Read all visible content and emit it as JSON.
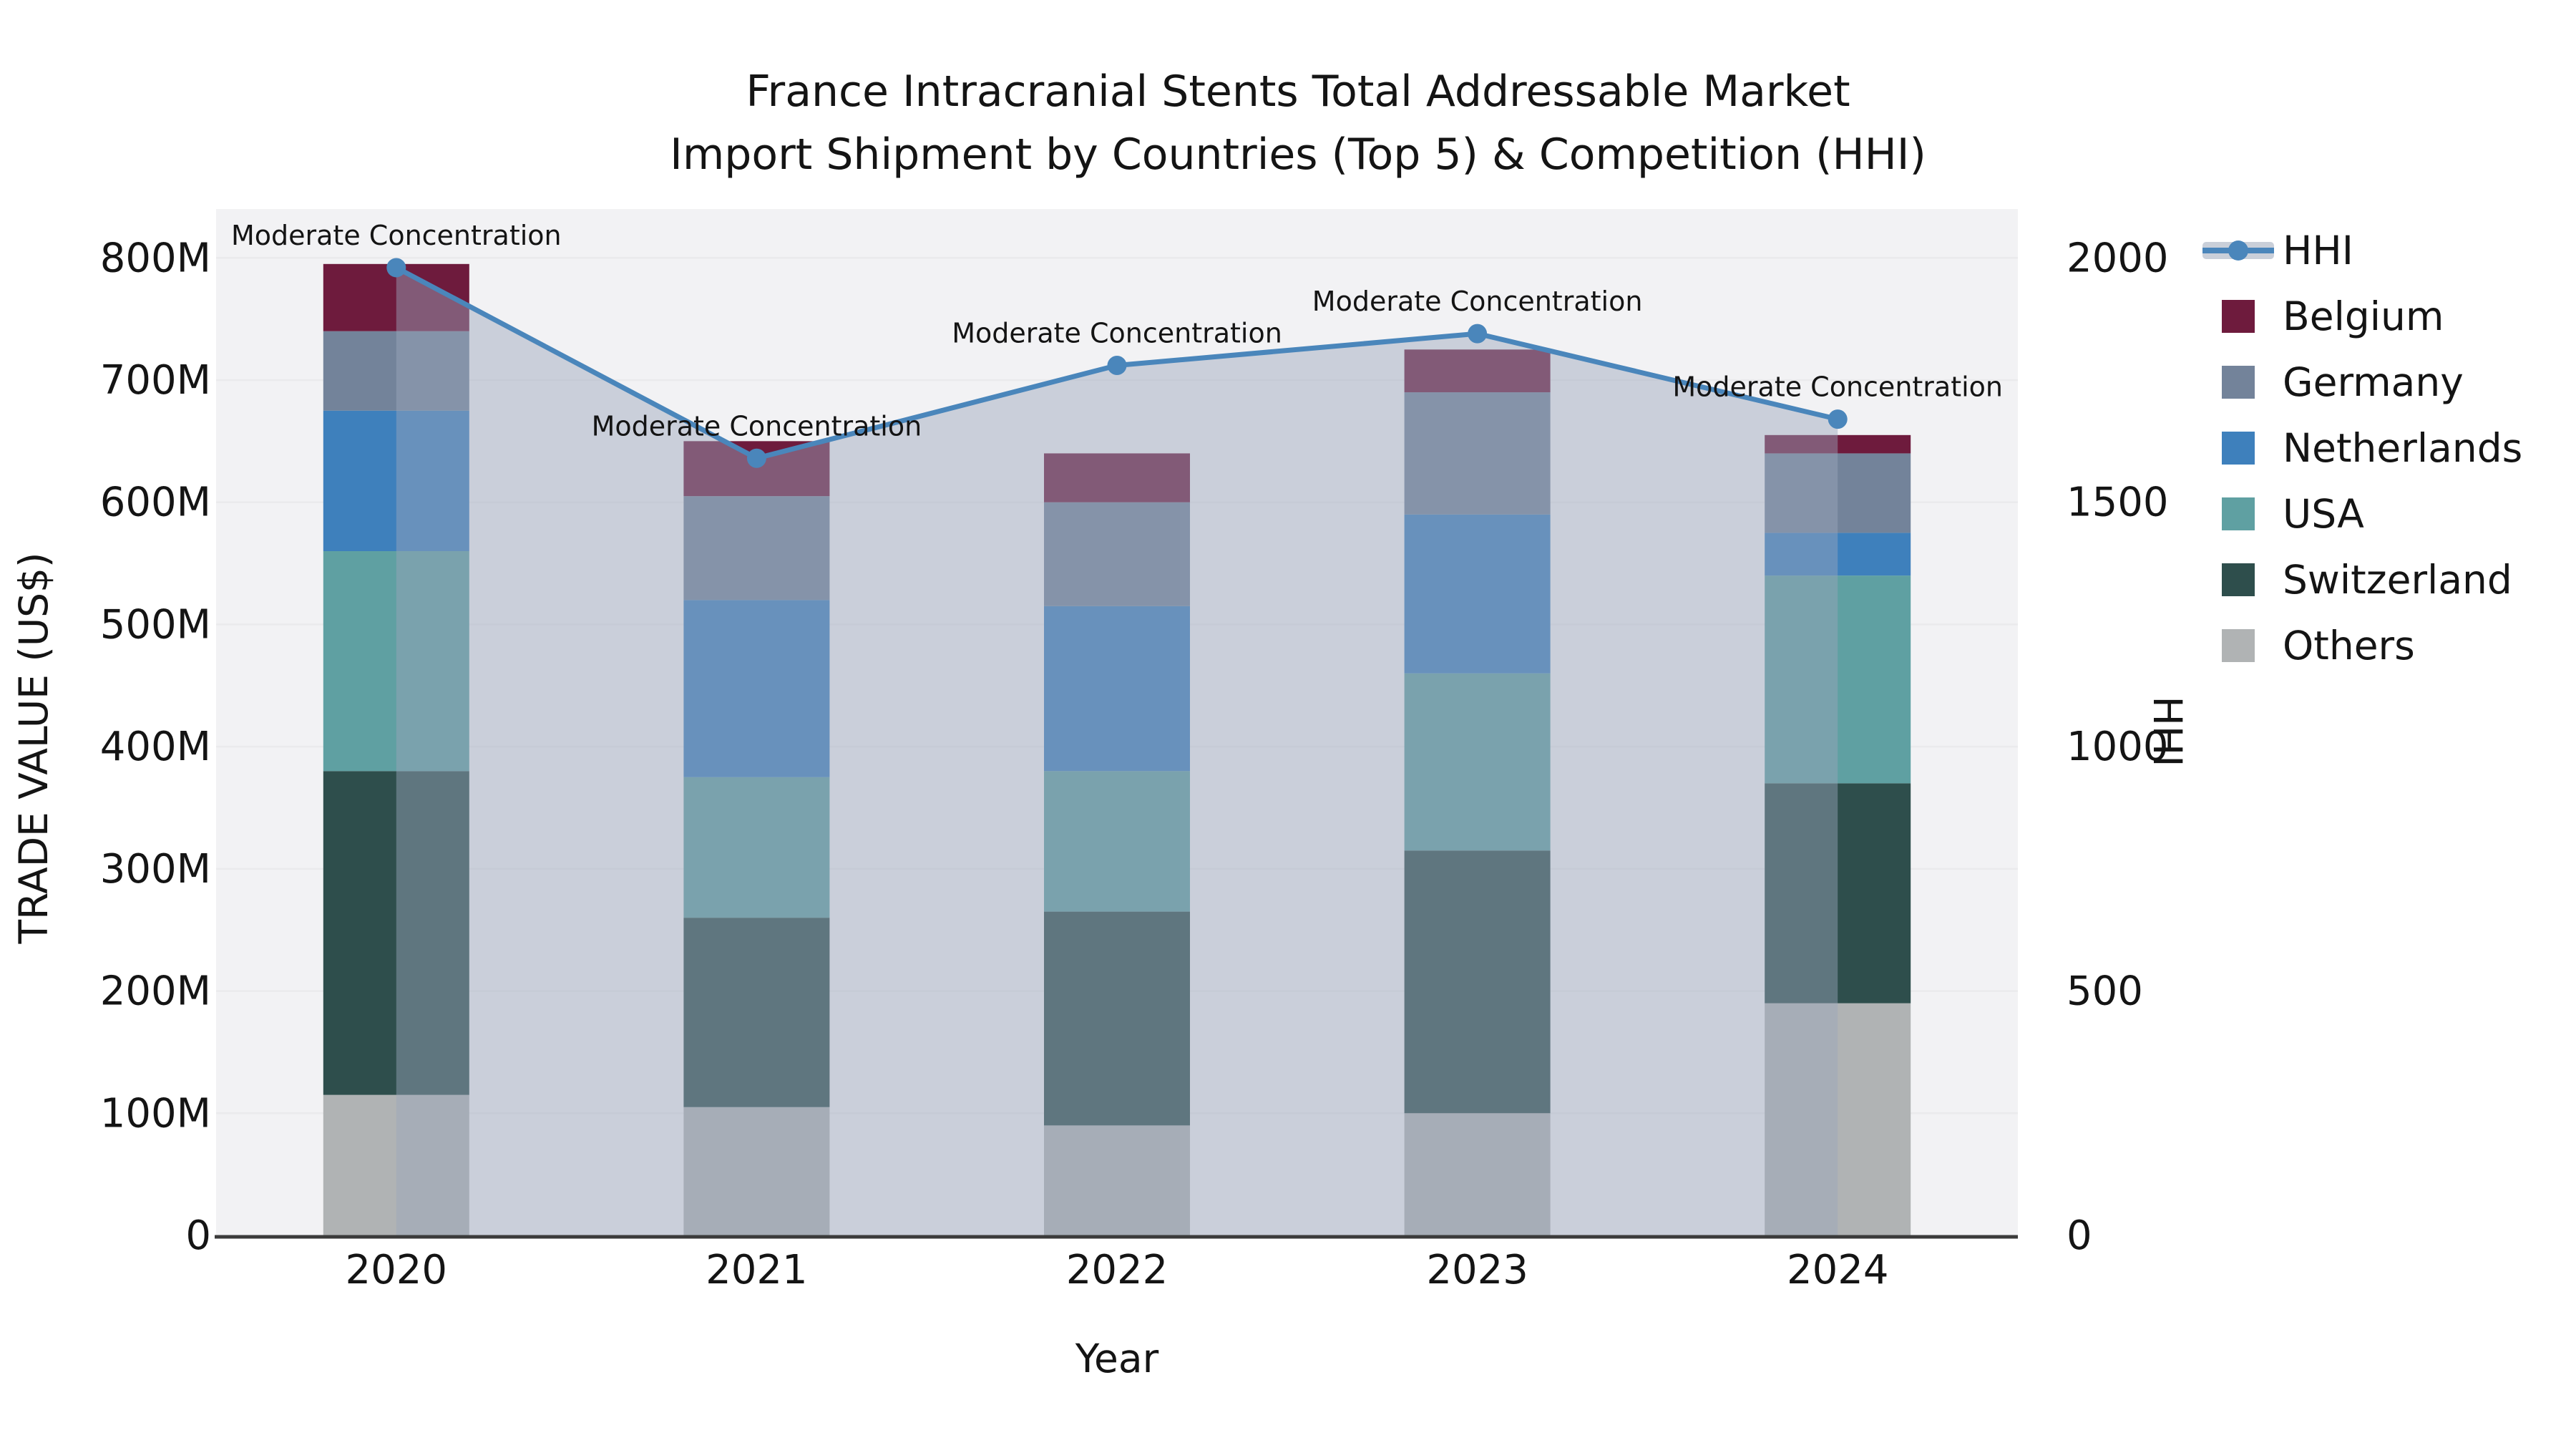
{
  "title": {
    "line1": "France Intracranial Stents Total Addressable Market",
    "line2": "Import Shipment by Countries (Top 5) & Competition (HHI)"
  },
  "chart_data": {
    "type": "bar+line",
    "subtype": "stacked-bars-with-secondary-axis-line-and-area-fill",
    "categories": [
      "2020",
      "2021",
      "2022",
      "2023",
      "2024"
    ],
    "unit_left": "US$ millions",
    "series": [
      {
        "name": "Belgium",
        "color": "#6e1b3d",
        "values": [
          55,
          45,
          40,
          35,
          15
        ]
      },
      {
        "name": "Germany",
        "color": "#73839a",
        "values": [
          65,
          85,
          85,
          100,
          65
        ]
      },
      {
        "name": "Netherlands",
        "color": "#3e80bc",
        "values": [
          115,
          145,
          135,
          130,
          35
        ]
      },
      {
        "name": "USA",
        "color": "#5fa0a2",
        "values": [
          180,
          115,
          115,
          145,
          170
        ]
      },
      {
        "name": "Switzerland",
        "color": "#2e4e4c",
        "values": [
          265,
          155,
          175,
          215,
          180
        ]
      },
      {
        "name": "Others",
        "color": "#b0b3b4",
        "values": [
          115,
          105,
          90,
          100,
          190
        ]
      }
    ],
    "stack_order_bottom_to_top": [
      "Others",
      "Switzerland",
      "USA",
      "Netherlands",
      "Germany",
      "Belgium"
    ],
    "stack_totals": [
      795,
      650,
      640,
      725,
      655
    ],
    "line_series": {
      "name": "HHI",
      "color": "#4a86bb",
      "fill": "rgba(154,166,188,0.46)",
      "legend_band_color": "#c9cfd9",
      "values": [
        1980,
        1590,
        1780,
        1845,
        1670
      ]
    },
    "annotations": [
      "Moderate Concentration",
      "Moderate Concentration",
      "Moderate Concentration",
      "Moderate Concentration",
      "Moderate Concentration"
    ],
    "xlabel": "Year",
    "ylabel_left": "TRADE VALUE (US$)",
    "ylabel_right": "HHI",
    "left_ticks": [
      {
        "label": "0",
        "value": 0
      },
      {
        "label": "100M",
        "value": 100
      },
      {
        "label": "200M",
        "value": 200
      },
      {
        "label": "300M",
        "value": 300
      },
      {
        "label": "400M",
        "value": 400
      },
      {
        "label": "500M",
        "value": 500
      },
      {
        "label": "600M",
        "value": 600
      },
      {
        "label": "700M",
        "value": 700
      },
      {
        "label": "800M",
        "value": 800
      }
    ],
    "right_ticks": [
      {
        "label": "0",
        "value": 0
      },
      {
        "label": "500",
        "value": 500
      },
      {
        "label": "1000",
        "value": 1000
      },
      {
        "label": "1500",
        "value": 1500
      },
      {
        "label": "2000",
        "value": 2000
      }
    ],
    "ylim_left": [
      0,
      840
    ],
    "ylim_right": [
      0,
      2100
    ],
    "grid": true,
    "legend_position": "right",
    "colors": {
      "plot_bg": "#f2f2f4",
      "gridline": "#eaeaec",
      "axis_line": "#3b3b3b",
      "text": "#141414"
    }
  }
}
